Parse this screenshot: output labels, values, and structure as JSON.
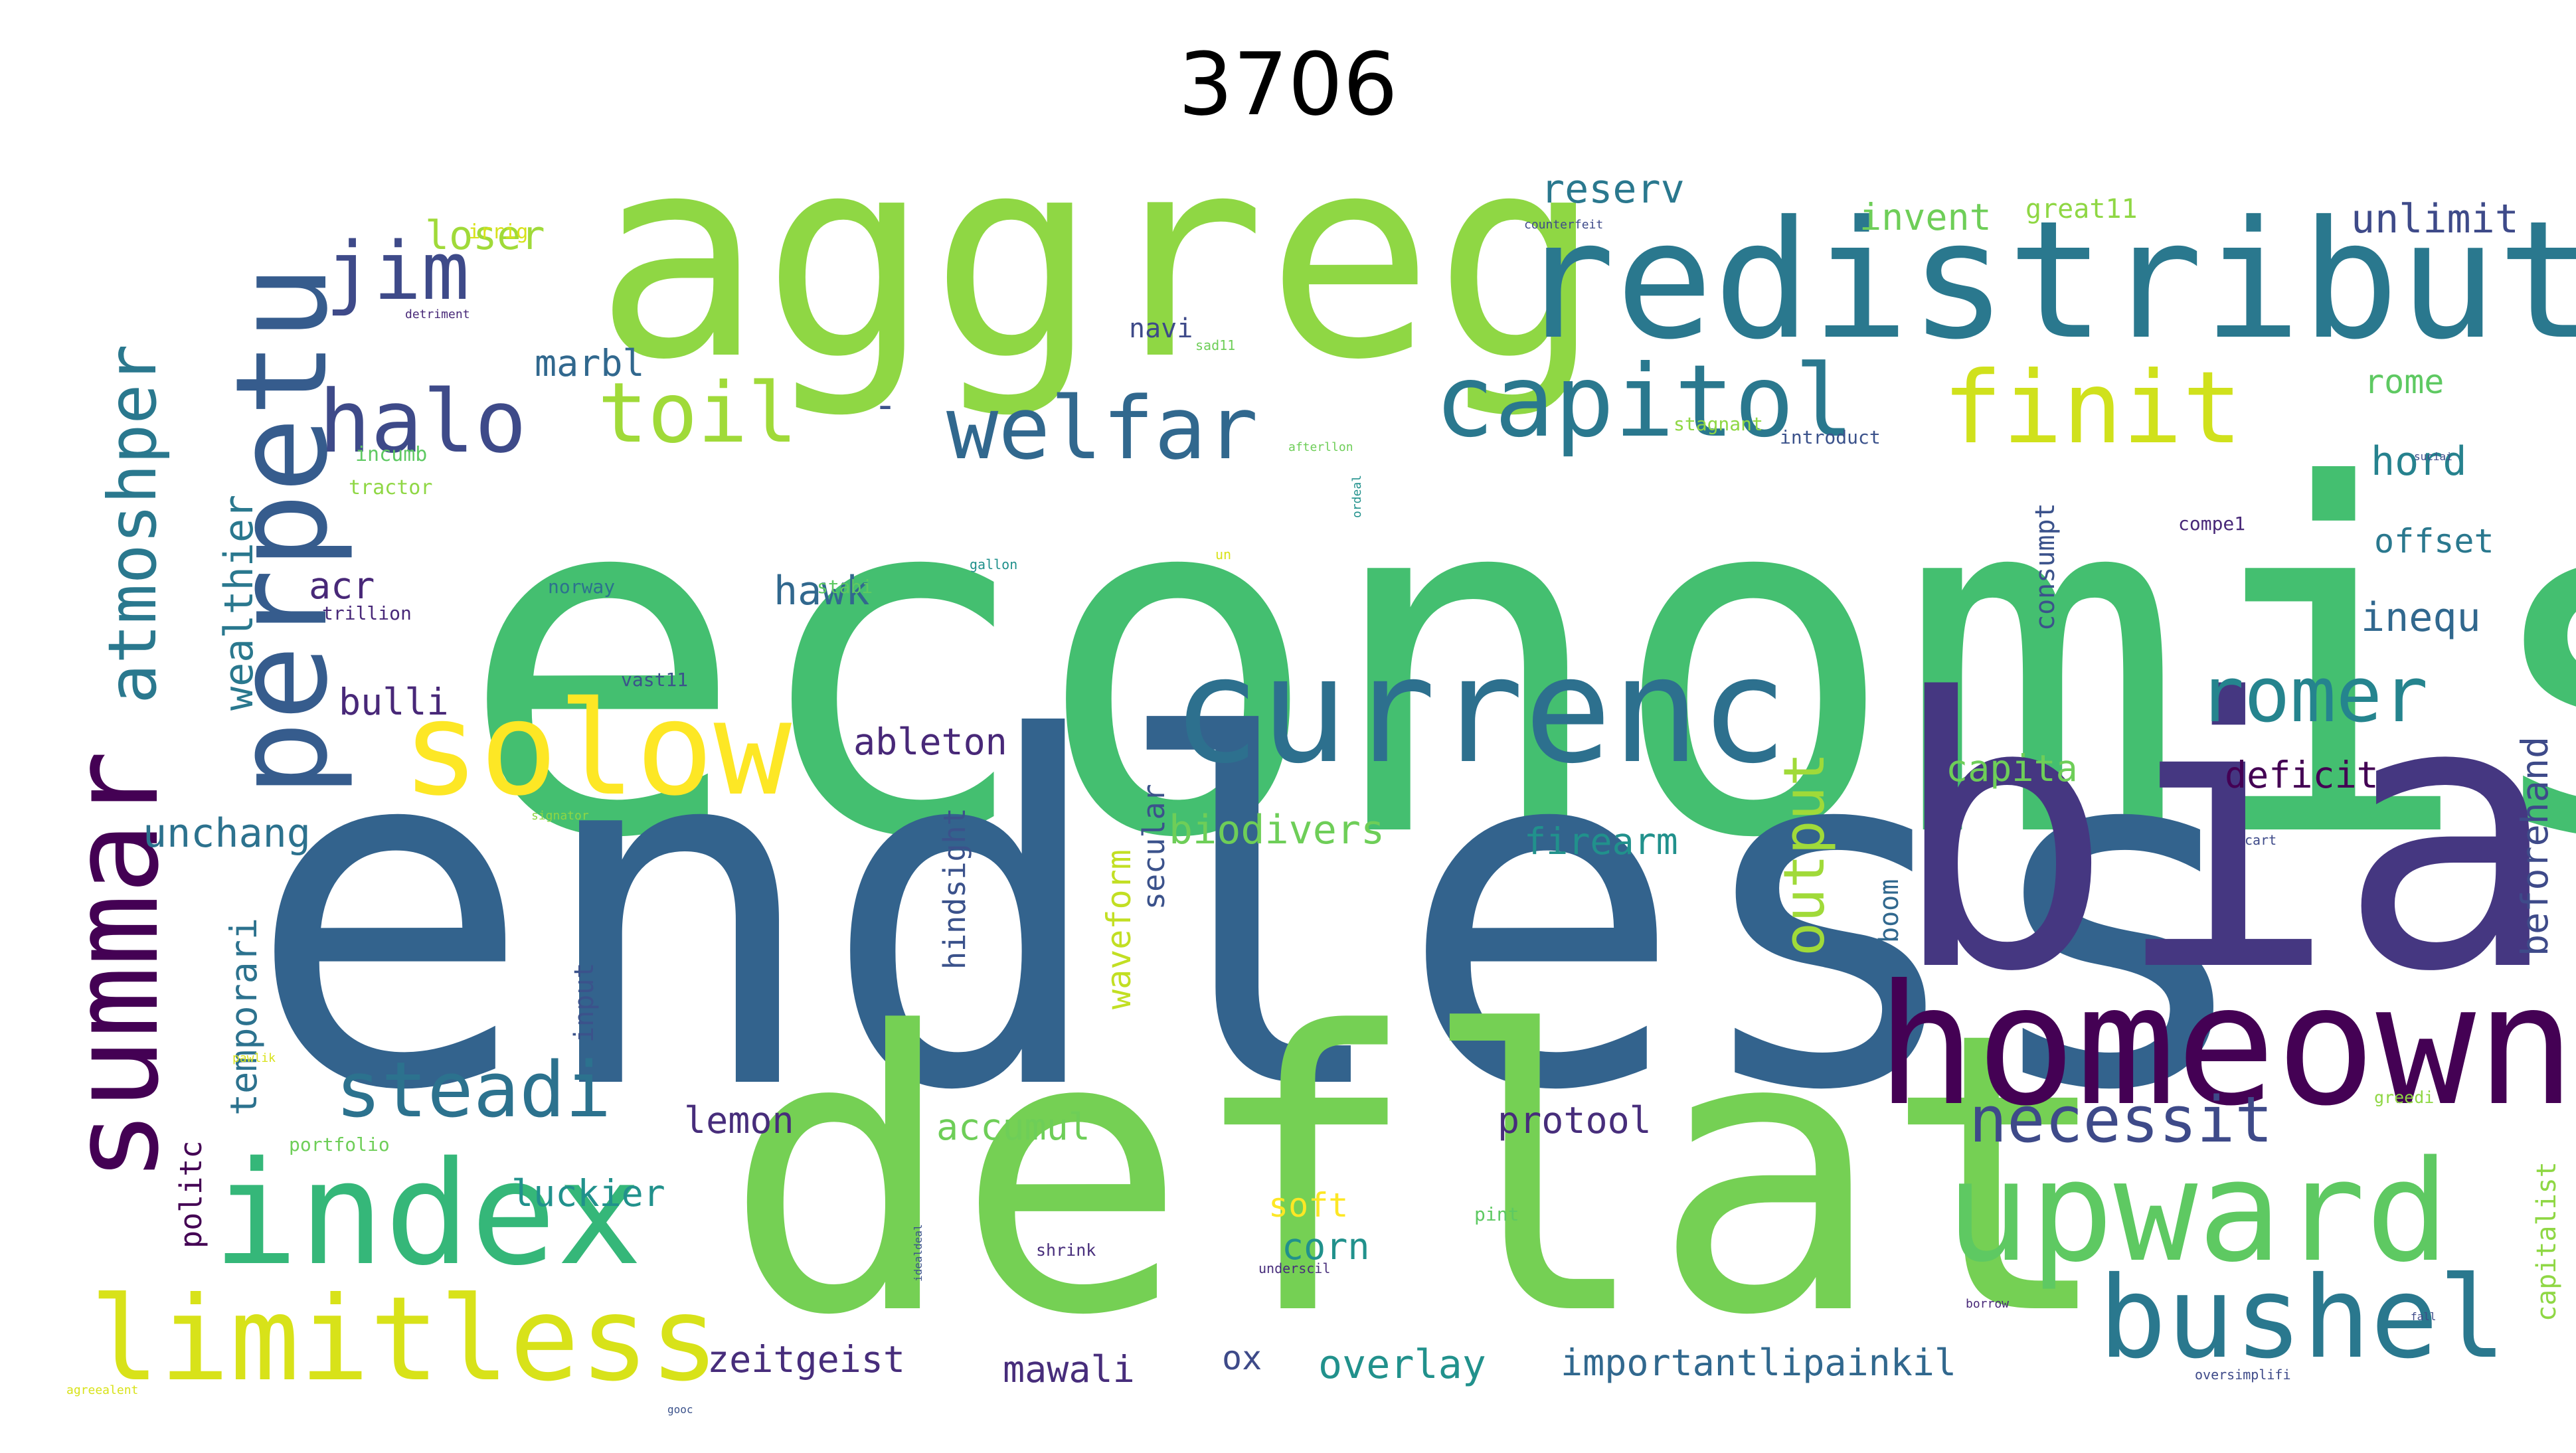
{
  "title": "3706",
  "palette": "viridis",
  "words": [
    {
      "text": "economist",
      "color": "#44bf70"
    },
    {
      "text": "endless",
      "color": "#33638d"
    },
    {
      "text": "deflat",
      "color": "#75d054"
    },
    {
      "text": "aggreg",
      "color": "#8fd744"
    },
    {
      "text": "bia",
      "color": "#453781"
    },
    {
      "text": "redistribut",
      "color": "#2a788e"
    },
    {
      "text": "homeown",
      "color": "#440154"
    },
    {
      "text": "currenc",
      "color": "#2d708e"
    },
    {
      "text": "perpetu",
      "color": "#365c8d"
    },
    {
      "text": "summar",
      "color": "#440154"
    },
    {
      "text": "index",
      "color": "#35b779"
    },
    {
      "text": "upward",
      "color": "#5ec962"
    },
    {
      "text": "solow",
      "color": "#fde725"
    },
    {
      "text": "limitless",
      "color": "#d8e219"
    },
    {
      "text": "bushel",
      "color": "#2a788e"
    },
    {
      "text": "capitol",
      "color": "#2a788e"
    },
    {
      "text": "finit",
      "color": "#d0e11c"
    },
    {
      "text": "halo",
      "color": "#3e4a89"
    },
    {
      "text": "welfar",
      "color": "#31688e"
    },
    {
      "text": "jim",
      "color": "#3e4a89"
    },
    {
      "text": "toil",
      "color": "#a0da39"
    },
    {
      "text": "steadi",
      "color": "#2c728e"
    },
    {
      "text": "atmoshper",
      "color": "#2a788e"
    },
    {
      "text": "romer",
      "color": "#25848e"
    },
    {
      "text": "necessit",
      "color": "#3e4a89"
    },
    {
      "text": "output",
      "color": "#a0da39"
    },
    {
      "text": "reserv",
      "color": "#2a788e"
    },
    {
      "text": "unlimit",
      "color": "#3e4a89"
    },
    {
      "text": "loser",
      "color": "#a0da39"
    },
    {
      "text": "invent",
      "color": "#6ece58"
    },
    {
      "text": "great11",
      "color": "#8fd744"
    },
    {
      "text": "marbl",
      "color": "#31688e"
    },
    {
      "text": "navi",
      "color": "#3e4a89"
    },
    {
      "text": "rome",
      "color": "#5ec962"
    },
    {
      "text": "hord",
      "color": "#26828e"
    },
    {
      "text": "offset",
      "color": "#2a788e"
    },
    {
      "text": "inequ",
      "color": "#31688e"
    },
    {
      "text": "wealthier",
      "color": "#2a788e"
    },
    {
      "text": "hawk",
      "color": "#31688e"
    },
    {
      "text": "acr",
      "color": "#482878"
    },
    {
      "text": "bulli",
      "color": "#482878"
    },
    {
      "text": "ableton",
      "color": "#482878"
    },
    {
      "text": "capita",
      "color": "#6ece58"
    },
    {
      "text": "deficit",
      "color": "#440154"
    },
    {
      "text": "biodivers",
      "color": "#6ece58"
    },
    {
      "text": "firearm",
      "color": "#21918c"
    },
    {
      "text": "unchang",
      "color": "#2c728e"
    },
    {
      "text": "consumpt",
      "color": "#3b528b"
    },
    {
      "text": "temporari",
      "color": "#2c728e"
    },
    {
      "text": "hindsight",
      "color": "#3b528b"
    },
    {
      "text": "waveform",
      "color": "#c2df23"
    },
    {
      "text": "secular",
      "color": "#3b528b"
    },
    {
      "text": "boom",
      "color": "#31688e"
    },
    {
      "text": "beforehand",
      "color": "#3e4a89"
    },
    {
      "text": "input",
      "color": "#3b528b"
    },
    {
      "text": "lemon",
      "color": "#472d7b"
    },
    {
      "text": "accumul",
      "color": "#6ece58"
    },
    {
      "text": "protool",
      "color": "#472d7b"
    },
    {
      "text": "luckier",
      "color": "#21918c"
    },
    {
      "text": "politc",
      "color": "#440154"
    },
    {
      "text": "soft",
      "color": "#fde725"
    },
    {
      "text": "corn",
      "color": "#21918c"
    },
    {
      "text": "capitalist",
      "color": "#8fd744"
    },
    {
      "text": "zeitgeist",
      "color": "#472d7b"
    },
    {
      "text": "mawali",
      "color": "#472d7b"
    },
    {
      "text": "ox",
      "color": "#3e4a89"
    },
    {
      "text": "overlay",
      "color": "#21918c"
    },
    {
      "text": "importantlipainkil",
      "color": "#31688e"
    },
    {
      "text": "irrig",
      "color": "#d8e219"
    },
    {
      "text": "counterfeit",
      "color": "#3e4a89"
    },
    {
      "text": "detriment",
      "color": "#482878"
    },
    {
      "text": "sad11",
      "color": "#6ece58"
    },
    {
      "text": "incumb",
      "color": "#5ec962"
    },
    {
      "text": "tractor",
      "color": "#8fd744"
    },
    {
      "text": "stagnant",
      "color": "#8fd744"
    },
    {
      "text": "introduct",
      "color": "#3b528b"
    },
    {
      "text": "compe1",
      "color": "#482878"
    },
    {
      "text": "norway",
      "color": "#2c728e"
    },
    {
      "text": "stabi",
      "color": "#5ec962"
    },
    {
      "text": "trillion",
      "color": "#482878"
    },
    {
      "text": "vast11",
      "color": "#3b528b"
    },
    {
      "text": "gallon",
      "color": "#21918c"
    },
    {
      "text": "signator",
      "color": "#8fd744"
    },
    {
      "text": "pawlik",
      "color": "#d8e219"
    },
    {
      "text": "portfolio",
      "color": "#6ece58"
    },
    {
      "text": "pint",
      "color": "#5ec962"
    },
    {
      "text": "shrink",
      "color": "#472d7b"
    },
    {
      "text": "underscil",
      "color": "#472d7b"
    },
    {
      "text": "borrow",
      "color": "#482878"
    },
    {
      "text": "oversimplifi",
      "color": "#3e4a89"
    },
    {
      "text": "cart",
      "color": "#3e4a89"
    },
    {
      "text": "greedi",
      "color": "#8fd744"
    },
    {
      "text": "agreealent",
      "color": "#d8e219"
    },
    {
      "text": "idealdeal",
      "color": "#3b528b"
    },
    {
      "text": "ordeal",
      "color": "#21918c"
    },
    {
      "text": "afterllon",
      "color": "#6ece58"
    },
    {
      "text": "suciai",
      "color": "#3e4a89"
    },
    {
      "text": "un",
      "color": "#d8e219"
    },
    {
      "text": "fall",
      "color": "#3e4a89"
    },
    {
      "text": "gooc",
      "color": "#3b528b"
    },
    {
      "text": "-",
      "color": "#3b528b"
    }
  ]
}
